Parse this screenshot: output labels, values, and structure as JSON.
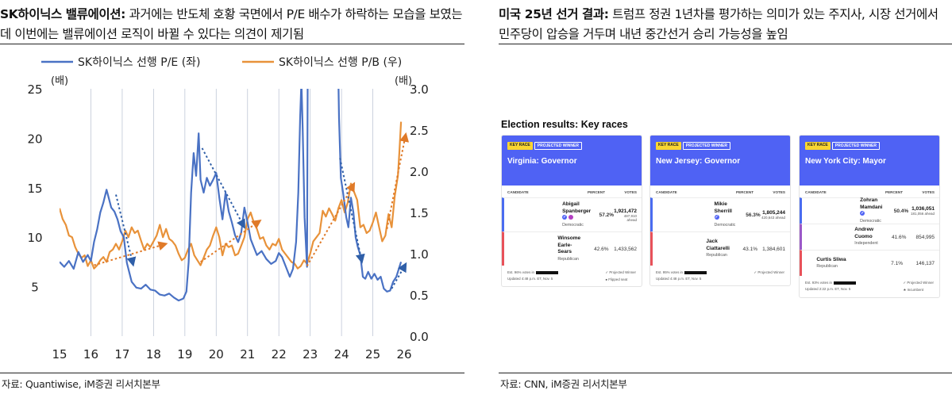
{
  "left": {
    "headline_bold": "SK하이닉스 밸류에이션:",
    "headline_rest": " 과거에는 반도체 호황 국면에서 P/E 배수가 하락하는 모습을 보였는데 이번에는 밸류에이션 로직이 바뀔 수 있다는 의견이 제기됨",
    "source": "자료: Quantiwise, iM증권 리서치본부"
  },
  "right": {
    "headline_bold": "미국 25년 선거 결과:",
    "headline_rest": " 트럼프 정권 1년차를 평가하는 의미가 있는 주지사, 시장 선거에서 민주당이 압승을 거두며 내년 중간선거 승리 가능성을 높임",
    "source": "자료: CNN, iM증권 리서치본부"
  },
  "chart_data": {
    "type": "line",
    "colors": {
      "pe": "#4a72c4",
      "pb": "#e8923a",
      "trend_pe": "#2f5fa8",
      "trend_pb": "#e07a28"
    },
    "legend": [
      "SK하이닉스 선행 P/E (좌)",
      "SK하이닉스 선행 P/B (우)"
    ],
    "legend_placement": "top-center",
    "left_unit": "(배)",
    "right_unit": "(배)",
    "x_ticks": [
      "15",
      "16",
      "17",
      "18",
      "19",
      "20",
      "21",
      "22",
      "23",
      "24",
      "25",
      "26"
    ],
    "xlim": [
      2015,
      2026.1
    ],
    "y_left_ticks": [
      "5",
      "10",
      "15",
      "20",
      "25"
    ],
    "ylim_left": [
      0,
      25
    ],
    "y_right_ticks": [
      "0.0",
      "0.5",
      "1.0",
      "1.5",
      "2.0",
      "2.5",
      "3.0"
    ],
    "ylim_right": [
      0,
      3
    ],
    "grid": "vertical year lines",
    "series": [
      {
        "name": "SK하이닉스 선행 P/E (좌)",
        "axis": "left",
        "points": [
          [
            2015.0,
            7.5
          ],
          [
            2015.15,
            7.0
          ],
          [
            2015.3,
            7.6
          ],
          [
            2015.45,
            6.8
          ],
          [
            2015.6,
            8.5
          ],
          [
            2015.75,
            7.5
          ],
          [
            2015.9,
            8.2
          ],
          [
            2016.0,
            7.6
          ],
          [
            2016.1,
            9.5
          ],
          [
            2016.2,
            10.8
          ],
          [
            2016.3,
            12.5
          ],
          [
            2016.4,
            13.5
          ],
          [
            2016.5,
            14.8
          ],
          [
            2016.55,
            14.2
          ],
          [
            2016.65,
            13.0
          ],
          [
            2016.75,
            12.6
          ],
          [
            2016.85,
            11.8
          ],
          [
            2016.95,
            10.6
          ],
          [
            2017.05,
            10.0
          ],
          [
            2017.15,
            7.4
          ],
          [
            2017.3,
            5.5
          ],
          [
            2017.45,
            4.9
          ],
          [
            2017.6,
            4.8
          ],
          [
            2017.75,
            5.2
          ],
          [
            2017.9,
            4.7
          ],
          [
            2018.05,
            4.6
          ],
          [
            2018.2,
            4.2
          ],
          [
            2018.35,
            4.1
          ],
          [
            2018.5,
            4.3
          ],
          [
            2018.65,
            3.9
          ],
          [
            2018.8,
            3.6
          ],
          [
            2018.95,
            3.8
          ],
          [
            2019.05,
            4.5
          ],
          [
            2019.12,
            7.5
          ],
          [
            2019.2,
            14.5
          ],
          [
            2019.28,
            18.5
          ],
          [
            2019.36,
            16.2
          ],
          [
            2019.44,
            20.5
          ],
          [
            2019.5,
            15.8
          ],
          [
            2019.6,
            14.5
          ],
          [
            2019.7,
            16.0
          ],
          [
            2019.8,
            15.2
          ],
          [
            2019.9,
            15.8
          ],
          [
            2020.0,
            16.5
          ],
          [
            2020.1,
            14.0
          ],
          [
            2020.2,
            11.8
          ],
          [
            2020.3,
            14.5
          ],
          [
            2020.4,
            12.6
          ],
          [
            2020.5,
            11.5
          ],
          [
            2020.6,
            10.2
          ],
          [
            2020.7,
            9.5
          ],
          [
            2020.8,
            10.5
          ],
          [
            2020.9,
            13.0
          ],
          [
            2021.0,
            11.5
          ],
          [
            2021.1,
            9.8
          ],
          [
            2021.2,
            9.0
          ],
          [
            2021.3,
            8.2
          ],
          [
            2021.45,
            8.6
          ],
          [
            2021.6,
            7.8
          ],
          [
            2021.75,
            7.3
          ],
          [
            2021.9,
            7.6
          ],
          [
            2022.0,
            8.4
          ],
          [
            2022.1,
            8.0
          ],
          [
            2022.2,
            7.2
          ],
          [
            2022.35,
            6.0
          ],
          [
            2022.45,
            6.8
          ],
          [
            2022.55,
            9.5
          ],
          [
            2022.62,
            14.5
          ],
          [
            2022.68,
            22.0
          ],
          [
            2022.72,
            25.8
          ],
          [
            2022.76,
            21.0
          ],
          [
            2022.82,
            12.0
          ],
          [
            2022.9,
            7.0
          ],
          [
            2022.92,
            25.8
          ],
          [
            2023.9,
            25.8
          ],
          [
            2023.92,
            22.0
          ],
          [
            2023.98,
            16.0
          ],
          [
            2024.05,
            14.5
          ],
          [
            2024.15,
            12.0
          ],
          [
            2024.22,
            11.0
          ],
          [
            2024.3,
            14.0
          ],
          [
            2024.38,
            12.5
          ],
          [
            2024.45,
            10.0
          ],
          [
            2024.52,
            9.0
          ],
          [
            2024.6,
            8.2
          ],
          [
            2024.68,
            6.0
          ],
          [
            2024.76,
            5.8
          ],
          [
            2024.85,
            6.5
          ],
          [
            2024.95,
            5.8
          ],
          [
            2025.05,
            6.3
          ],
          [
            2025.15,
            5.7
          ],
          [
            2025.25,
            6.0
          ],
          [
            2025.35,
            4.8
          ],
          [
            2025.45,
            4.5
          ],
          [
            2025.55,
            4.6
          ],
          [
            2025.65,
            5.5
          ],
          [
            2025.75,
            6.0
          ],
          [
            2025.85,
            7.0
          ],
          [
            2025.9,
            7.5
          ]
        ]
      },
      {
        "name": "SK하이닉스 선행 P/B (우)",
        "axis": "right",
        "points": [
          [
            2015.0,
            1.55
          ],
          [
            2015.1,
            1.42
          ],
          [
            2015.2,
            1.35
          ],
          [
            2015.3,
            1.22
          ],
          [
            2015.4,
            1.2
          ],
          [
            2015.5,
            1.08
          ],
          [
            2015.6,
            1.0
          ],
          [
            2015.7,
            0.95
          ],
          [
            2015.8,
            0.98
          ],
          [
            2015.9,
            0.85
          ],
          [
            2016.0,
            0.92
          ],
          [
            2016.1,
            0.82
          ],
          [
            2016.2,
            0.86
          ],
          [
            2016.3,
            0.92
          ],
          [
            2016.4,
            0.96
          ],
          [
            2016.5,
            0.9
          ],
          [
            2016.6,
            1.02
          ],
          [
            2016.7,
            1.05
          ],
          [
            2016.8,
            1.12
          ],
          [
            2016.9,
            1.05
          ],
          [
            2017.0,
            1.15
          ],
          [
            2017.1,
            1.28
          ],
          [
            2017.2,
            1.2
          ],
          [
            2017.3,
            1.32
          ],
          [
            2017.4,
            1.25
          ],
          [
            2017.5,
            1.28
          ],
          [
            2017.6,
            1.16
          ],
          [
            2017.7,
            1.05
          ],
          [
            2017.8,
            1.12
          ],
          [
            2017.9,
            1.08
          ],
          [
            2018.0,
            1.15
          ],
          [
            2018.1,
            1.22
          ],
          [
            2018.2,
            1.35
          ],
          [
            2018.3,
            1.2
          ],
          [
            2018.4,
            1.3
          ],
          [
            2018.5,
            1.18
          ],
          [
            2018.6,
            1.15
          ],
          [
            2018.7,
            1.1
          ],
          [
            2018.8,
            1.0
          ],
          [
            2018.9,
            0.92
          ],
          [
            2019.0,
            0.95
          ],
          [
            2019.1,
            1.05
          ],
          [
            2019.2,
            1.12
          ],
          [
            2019.3,
            0.98
          ],
          [
            2019.4,
            0.92
          ],
          [
            2019.5,
            0.86
          ],
          [
            2019.6,
            0.95
          ],
          [
            2019.7,
            1.05
          ],
          [
            2019.8,
            1.1
          ],
          [
            2019.9,
            1.22
          ],
          [
            2020.0,
            1.32
          ],
          [
            2020.1,
            1.2
          ],
          [
            2020.2,
            0.98
          ],
          [
            2020.3,
            1.12
          ],
          [
            2020.4,
            1.08
          ],
          [
            2020.5,
            1.1
          ],
          [
            2020.6,
            0.98
          ],
          [
            2020.7,
            1.0
          ],
          [
            2020.8,
            1.1
          ],
          [
            2020.9,
            1.2
          ],
          [
            2021.0,
            1.42
          ],
          [
            2021.1,
            1.5
          ],
          [
            2021.2,
            1.38
          ],
          [
            2021.3,
            1.3
          ],
          [
            2021.4,
            1.18
          ],
          [
            2021.5,
            1.2
          ],
          [
            2021.6,
            1.1
          ],
          [
            2021.7,
            1.05
          ],
          [
            2021.8,
            1.12
          ],
          [
            2021.9,
            1.1
          ],
          [
            2022.0,
            1.18
          ],
          [
            2022.1,
            1.05
          ],
          [
            2022.2,
            1.0
          ],
          [
            2022.3,
            0.95
          ],
          [
            2022.4,
            0.9
          ],
          [
            2022.5,
            0.88
          ],
          [
            2022.6,
            0.82
          ],
          [
            2022.7,
            0.85
          ],
          [
            2022.8,
            0.92
          ],
          [
            2022.9,
            0.88
          ],
          [
            2023.0,
            1.0
          ],
          [
            2023.1,
            1.15
          ],
          [
            2023.2,
            1.2
          ],
          [
            2023.3,
            1.25
          ],
          [
            2023.4,
            1.52
          ],
          [
            2023.5,
            1.45
          ],
          [
            2023.6,
            1.55
          ],
          [
            2023.7,
            1.48
          ],
          [
            2023.8,
            1.4
          ],
          [
            2023.9,
            1.55
          ],
          [
            2024.0,
            1.65
          ],
          [
            2024.1,
            1.5
          ],
          [
            2024.2,
            1.62
          ],
          [
            2024.3,
            1.85
          ],
          [
            2024.4,
            1.75
          ],
          [
            2024.5,
            1.65
          ],
          [
            2024.6,
            1.32
          ],
          [
            2024.7,
            1.35
          ],
          [
            2024.8,
            1.25
          ],
          [
            2024.9,
            1.28
          ],
          [
            2025.0,
            1.38
          ],
          [
            2025.1,
            1.5
          ],
          [
            2025.2,
            1.32
          ],
          [
            2025.3,
            1.15
          ],
          [
            2025.4,
            1.22
          ],
          [
            2025.5,
            1.48
          ],
          [
            2025.6,
            1.32
          ],
          [
            2025.7,
            1.7
          ],
          [
            2025.8,
            1.95
          ],
          [
            2025.85,
            2.25
          ],
          [
            2025.9,
            2.6
          ]
        ]
      }
    ],
    "trend_arrows": [
      {
        "axis": "left",
        "from": [
          2016.8,
          14.3
        ],
        "to": [
          2017.35,
          7.2
        ]
      },
      {
        "axis": "left",
        "from": [
          2019.55,
          19.0
        ],
        "to": [
          2020.9,
          11.0
        ]
      },
      {
        "axis": "left",
        "from": [
          2023.95,
          18.0
        ],
        "to": [
          2024.65,
          7.5
        ]
      },
      {
        "axis": "left",
        "from": [
          2025.6,
          4.8
        ],
        "to": [
          2026.05,
          7.3
        ]
      },
      {
        "axis": "right",
        "from": [
          2016.1,
          0.86
        ],
        "to": [
          2018.4,
          1.12
        ]
      },
      {
        "axis": "right",
        "from": [
          2019.5,
          0.9
        ],
        "to": [
          2021.4,
          1.4
        ]
      },
      {
        "axis": "right",
        "from": [
          2022.9,
          0.85
        ],
        "to": [
          2024.4,
          1.85
        ]
      },
      {
        "axis": "right",
        "from": [
          2025.45,
          1.3
        ],
        "to": [
          2026.05,
          2.45
        ]
      }
    ]
  },
  "election": {
    "title": "Election results: Key races",
    "badge_key": "KEY RACE",
    "badge_proj": "PROJECTED WINNER",
    "col_candidate": "CANDIDATE",
    "col_percent": "PERCENT",
    "col_votes": "VOTES",
    "colors": {
      "header": "#4f62f4",
      "dem": "#4a6cf0",
      "rep": "#e8525a",
      "ind": "#9b59c8",
      "flip": "#b33fc2"
    },
    "cards": [
      {
        "race": "Virginia: Governor",
        "candidates": [
          {
            "name": "Abigail Spanberger",
            "party": "Democratic",
            "pct": "57.2%",
            "votes": "1,921,472",
            "ahead": "487,910 ahead",
            "winner": true,
            "color": "dem",
            "share": 0.572
          },
          {
            "name": "Winsome Earle-Sears",
            "party": "Republican",
            "pct": "42.6%",
            "votes": "1,433,562",
            "ahead": "",
            "winner": false,
            "color": "rep",
            "share": 0.426
          }
        ],
        "foot_left_1": "Est. 96% votes in",
        "foot_left_2": "Updated 4:48 p.m. ET, Nov. 5",
        "foot_right_1": "Projected Winner",
        "foot_right_2": "Flipped seat"
      },
      {
        "race": "New Jersey: Governor",
        "candidates": [
          {
            "name": "Mikie Sherrill",
            "party": "Democratic",
            "pct": "56.3%",
            "votes": "1,805,244",
            "ahead": "420,643 ahead",
            "winner": true,
            "color": "dem",
            "share": 0.563
          },
          {
            "name": "Jack Ciattarelli",
            "party": "Republican",
            "pct": "43.1%",
            "votes": "1,384,601",
            "ahead": "",
            "winner": false,
            "color": "rep",
            "share": 0.431
          }
        ],
        "foot_left_1": "Est. 95% votes in",
        "foot_left_2": "Updated 4:48 p.m. ET, Nov. 5",
        "foot_right_1": "Projected Winner",
        "foot_right_2": ""
      },
      {
        "race": "New York City: Mayor",
        "candidates": [
          {
            "name": "Zohran Mamdani",
            "party": "Democratic",
            "pct": "50.4%",
            "votes": "1,036,051",
            "ahead": "181,056 ahead",
            "winner": true,
            "color": "dem",
            "share": 0.504
          },
          {
            "name": "Andrew Cuomo",
            "party": "Independent",
            "pct": "41.6%",
            "votes": "854,995",
            "ahead": "",
            "winner": false,
            "color": "ind",
            "share": 0.416
          },
          {
            "name": "Curtis Sliwa",
            "party": "Republican",
            "pct": "7.1%",
            "votes": "146,137",
            "ahead": "",
            "winner": false,
            "color": "rep",
            "share": 0.071
          }
        ],
        "foot_left_1": "Est. 93% votes in",
        "foot_left_2": "Updated 2:22 p.m. ET, Nov. 5",
        "foot_right_1": "Projected Winner",
        "foot_right_2": "Incumbent"
      }
    ]
  }
}
